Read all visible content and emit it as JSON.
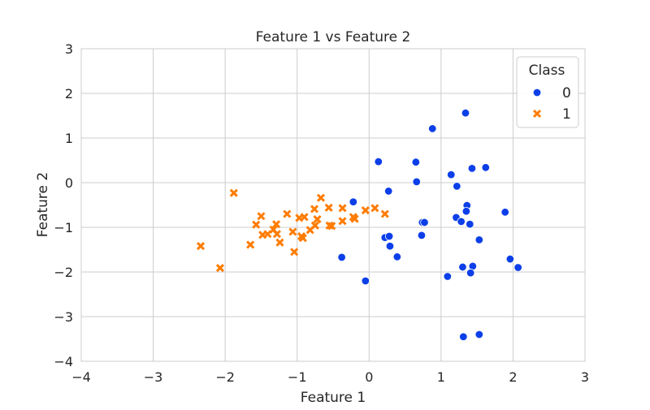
{
  "chart_data": {
    "type": "scatter",
    "title": "Feature 1 vs Feature 2",
    "xlabel": "Feature 1",
    "ylabel": "Feature 2",
    "xlim": [
      -4,
      3
    ],
    "ylim": [
      -4,
      3
    ],
    "x_ticks": [
      -4,
      -3,
      -2,
      -1,
      0,
      1,
      2,
      3
    ],
    "y_ticks": [
      -4,
      -3,
      -2,
      -1,
      0,
      1,
      2,
      3
    ],
    "grid": true,
    "legend": {
      "title": "Class",
      "placement": "top-right"
    },
    "series": [
      {
        "name": "0",
        "marker": "circle",
        "color": "#0c3fe8",
        "points": [
          [
            0.13,
            0.47
          ],
          [
            0.27,
            -0.19
          ],
          [
            -0.22,
            -0.43
          ],
          [
            0.65,
            0.46
          ],
          [
            0.66,
            0.02
          ],
          [
            0.88,
            1.21
          ],
          [
            1.34,
            1.56
          ],
          [
            1.43,
            0.32
          ],
          [
            1.62,
            0.34
          ],
          [
            1.14,
            0.18
          ],
          [
            1.22,
            -0.08
          ],
          [
            1.36,
            -0.51
          ],
          [
            1.35,
            -0.64
          ],
          [
            1.21,
            -0.78
          ],
          [
            1.28,
            -0.87
          ],
          [
            1.4,
            -0.93
          ],
          [
            1.89,
            -0.66
          ],
          [
            0.74,
            -0.89
          ],
          [
            0.77,
            -0.89
          ],
          [
            0.22,
            -1.23
          ],
          [
            0.28,
            -1.2
          ],
          [
            0.29,
            -1.42
          ],
          [
            0.39,
            -1.66
          ],
          [
            0.73,
            -1.18
          ],
          [
            1.53,
            -1.28
          ],
          [
            -0.38,
            -1.67
          ],
          [
            -0.05,
            -2.2
          ],
          [
            1.09,
            -2.1
          ],
          [
            1.3,
            -1.89
          ],
          [
            1.44,
            -1.87
          ],
          [
            1.41,
            -2.02
          ],
          [
            1.96,
            -1.71
          ],
          [
            2.07,
            -1.9
          ],
          [
            1.31,
            -3.45
          ],
          [
            1.53,
            -3.4
          ]
        ]
      },
      {
        "name": "1",
        "marker": "x",
        "color": "#ff7c00",
        "points": [
          [
            -2.34,
            -1.42
          ],
          [
            -2.07,
            -1.91
          ],
          [
            -1.88,
            -0.23
          ],
          [
            -1.65,
            -1.39
          ],
          [
            -1.57,
            -0.94
          ],
          [
            -1.5,
            -0.75
          ],
          [
            -1.48,
            -1.17
          ],
          [
            -1.41,
            -1.15
          ],
          [
            -1.33,
            -1.05
          ],
          [
            -1.28,
            -1.15
          ],
          [
            -1.29,
            -0.93
          ],
          [
            -1.24,
            -1.34
          ],
          [
            -1.14,
            -0.7
          ],
          [
            -1.06,
            -1.1
          ],
          [
            -1.04,
            -1.55
          ],
          [
            -0.97,
            -0.79
          ],
          [
            -0.94,
            -1.2
          ],
          [
            -0.92,
            -1.24
          ],
          [
            -0.9,
            -0.77
          ],
          [
            -0.82,
            -1.06
          ],
          [
            -0.75,
            -0.96
          ],
          [
            -0.76,
            -0.59
          ],
          [
            -0.72,
            -0.82
          ],
          [
            -0.67,
            -0.34
          ],
          [
            -0.56,
            -0.56
          ],
          [
            -0.55,
            -0.96
          ],
          [
            -0.52,
            -0.97
          ],
          [
            -0.37,
            -0.86
          ],
          [
            -0.37,
            -0.57
          ],
          [
            -0.22,
            -0.77
          ],
          [
            -0.2,
            -0.81
          ],
          [
            -0.05,
            -0.62
          ],
          [
            0.08,
            -0.57
          ],
          [
            0.22,
            -0.7
          ]
        ]
      }
    ]
  }
}
